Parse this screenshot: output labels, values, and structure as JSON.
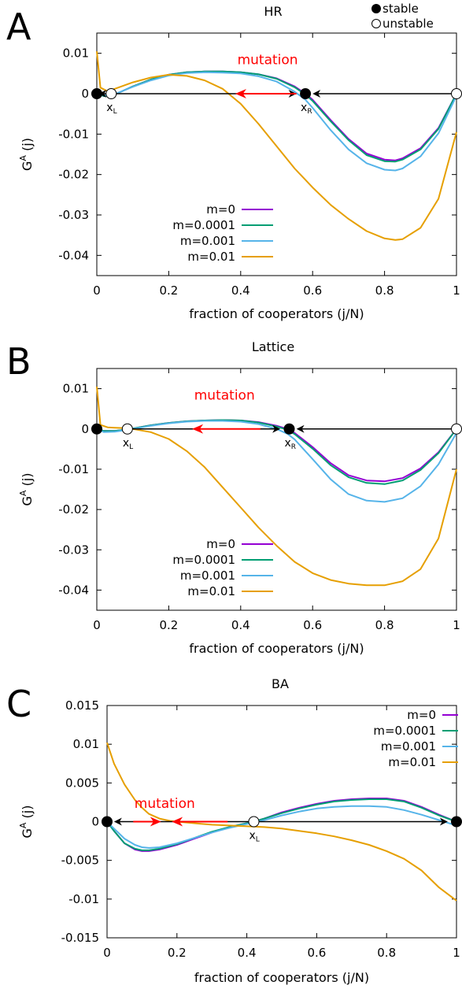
{
  "global_legend": {
    "stable_label": "stable",
    "unstable_label": "unstable"
  },
  "colors": {
    "m0": "#9400d3",
    "m1": "#009e73",
    "m2": "#56b4e9",
    "m3": "#e69f00",
    "mutation": "#ff0000"
  },
  "chart_data": [
    {
      "panel": "A",
      "title": "HR",
      "type": "line",
      "xlabel": "fraction of cooperators (j/N)",
      "ylabel": "GA (j)",
      "ylabel_main": "G",
      "ylabel_sup": "A",
      "ylabel_rest": "(j)",
      "xlim": [
        0,
        1
      ],
      "ylim": [
        -0.045,
        0.015
      ],
      "xticks": [
        0,
        0.2,
        0.4,
        0.6,
        0.8,
        1
      ],
      "xtick_labels": [
        "0",
        "0.2",
        "0.4",
        "0.6",
        "0.8",
        "1"
      ],
      "yticks": [
        0.01,
        0,
        -0.01,
        -0.02,
        -0.03,
        -0.04
      ],
      "ytick_labels": [
        "0.01",
        "0",
        "-0.01",
        "-0.02",
        "-0.03",
        "-0.04"
      ],
      "legend": {
        "position": "bottom-left",
        "entries": [
          "m=0",
          "m=0.0001",
          "m=0.001",
          "m=0.01"
        ]
      },
      "series": [
        {
          "name": "m=0",
          "color": "#9400d3",
          "x": [
            0,
            0.02,
            0.05,
            0.1,
            0.15,
            0.2,
            0.25,
            0.3,
            0.35,
            0.4,
            0.45,
            0.5,
            0.55,
            0.58,
            0.6,
            0.65,
            0.7,
            0.75,
            0.8,
            0.83,
            0.85,
            0.9,
            0.95,
            1
          ],
          "y": [
            0,
            -0.0006,
            -0.0002,
            0.0018,
            0.0035,
            0.0047,
            0.0053,
            0.0055,
            0.0055,
            0.0053,
            0.0048,
            0.0038,
            0.0018,
            0,
            -0.0015,
            -0.0065,
            -0.0112,
            -0.0148,
            -0.0163,
            -0.0165,
            -0.016,
            -0.0135,
            -0.0085,
            0
          ]
        },
        {
          "name": "m=0.0001",
          "color": "#009e73",
          "x": [
            0,
            0.02,
            0.05,
            0.1,
            0.15,
            0.2,
            0.25,
            0.3,
            0.35,
            0.4,
            0.45,
            0.5,
            0.55,
            0.58,
            0.6,
            0.65,
            0.7,
            0.75,
            0.8,
            0.83,
            0.85,
            0.9,
            0.95,
            1
          ],
          "y": [
            0,
            -0.0006,
            -0.0002,
            0.0018,
            0.0035,
            0.0047,
            0.0053,
            0.0055,
            0.0055,
            0.0053,
            0.0048,
            0.0037,
            0.0016,
            -0.0002,
            -0.0018,
            -0.0068,
            -0.0115,
            -0.0152,
            -0.0167,
            -0.0168,
            -0.0163,
            -0.0138,
            -0.0087,
            0
          ]
        },
        {
          "name": "m=0.001",
          "color": "#56b4e9",
          "x": [
            0,
            0.02,
            0.05,
            0.1,
            0.15,
            0.2,
            0.25,
            0.3,
            0.35,
            0.4,
            0.45,
            0.5,
            0.55,
            0.58,
            0.6,
            0.65,
            0.7,
            0.75,
            0.8,
            0.83,
            0.85,
            0.9,
            0.95,
            1
          ],
          "y": [
            0.0005,
            -0.0004,
            -0.0001,
            0.0017,
            0.0033,
            0.0045,
            0.0051,
            0.0053,
            0.0052,
            0.005,
            0.0043,
            0.003,
            0.0005,
            -0.0015,
            -0.0035,
            -0.009,
            -0.0138,
            -0.0172,
            -0.0188,
            -0.019,
            -0.0185,
            -0.0155,
            -0.0098,
            -0.0005
          ]
        },
        {
          "name": "m=0.01",
          "color": "#e69f00",
          "x": [
            0,
            0.01,
            0.03,
            0.05,
            0.1,
            0.15,
            0.2,
            0.25,
            0.3,
            0.35,
            0.4,
            0.45,
            0.5,
            0.55,
            0.6,
            0.65,
            0.7,
            0.75,
            0.8,
            0.83,
            0.85,
            0.9,
            0.95,
            1
          ],
          "y": [
            0.0105,
            0.0015,
            0.0006,
            0.0012,
            0.0028,
            0.004,
            0.0047,
            0.0044,
            0.0033,
            0.0012,
            -0.0025,
            -0.0075,
            -0.013,
            -0.0185,
            -0.0232,
            -0.0275,
            -0.031,
            -0.034,
            -0.0358,
            -0.0362,
            -0.036,
            -0.0332,
            -0.026,
            -0.0095
          ]
        }
      ],
      "fixed_points": [
        {
          "x": 0,
          "y": 0,
          "stable": true,
          "label": ""
        },
        {
          "x": 0.04,
          "y": 0,
          "stable": false,
          "label": "x",
          "sub": "L"
        },
        {
          "x": 0.58,
          "y": 0,
          "stable": true,
          "label": "x",
          "sub": "R"
        },
        {
          "x": 1,
          "y": 0,
          "stable": false,
          "label": ""
        }
      ],
      "arrows": [
        {
          "from": 0.04,
          "to": 0.005,
          "color": "#000000"
        },
        {
          "from": 0.04,
          "to": 0.555,
          "color": "#000000"
        },
        {
          "from": 1,
          "to": 0.6,
          "color": "#000000"
        },
        {
          "from": 0.555,
          "to": 0.385,
          "color": "#ff0000"
        }
      ],
      "mutation_label": "mutation",
      "mutation_at": [
        0.475,
        0.0073
      ]
    },
    {
      "panel": "B",
      "title": "Lattice",
      "type": "line",
      "xlabel": "fraction of cooperators (j/N)",
      "ylabel": "GA (j)",
      "ylabel_main": "G",
      "ylabel_sup": "A",
      "ylabel_rest": "(j)",
      "xlim": [
        0,
        1
      ],
      "ylim": [
        -0.045,
        0.015
      ],
      "xticks": [
        0,
        0.2,
        0.4,
        0.6,
        0.8,
        1
      ],
      "xtick_labels": [
        "0",
        "0.2",
        "0.4",
        "0.6",
        "0.8",
        "1"
      ],
      "yticks": [
        0.01,
        0,
        -0.01,
        -0.02,
        -0.03,
        -0.04
      ],
      "ytick_labels": [
        "0.01",
        "0",
        "-0.01",
        "-0.02",
        "-0.03",
        "-0.04"
      ],
      "legend": {
        "position": "bottom-left",
        "entries": [
          "m=0",
          "m=0.0001",
          "m=0.001",
          "m=0.01"
        ]
      },
      "series": [
        {
          "name": "m=0",
          "color": "#9400d3",
          "x": [
            0,
            0.02,
            0.05,
            0.08,
            0.1,
            0.15,
            0.2,
            0.25,
            0.3,
            0.35,
            0.4,
            0.45,
            0.5,
            0.53,
            0.55,
            0.6,
            0.65,
            0.7,
            0.75,
            0.8,
            0.85,
            0.9,
            0.95,
            1
          ],
          "y": [
            0,
            -0.0005,
            -0.0005,
            -0.0002,
            0.0001,
            0.0009,
            0.0015,
            0.0019,
            0.0021,
            0.0022,
            0.0021,
            0.0017,
            0.0008,
            0,
            -0.001,
            -0.0045,
            -0.0085,
            -0.0115,
            -0.0128,
            -0.013,
            -0.0122,
            -0.0098,
            -0.0058,
            0
          ]
        },
        {
          "name": "m=0.0001",
          "color": "#009e73",
          "x": [
            0,
            0.02,
            0.05,
            0.08,
            0.1,
            0.15,
            0.2,
            0.25,
            0.3,
            0.35,
            0.4,
            0.45,
            0.5,
            0.53,
            0.55,
            0.6,
            0.65,
            0.7,
            0.75,
            0.8,
            0.85,
            0.9,
            0.95,
            1
          ],
          "y": [
            0,
            -0.0005,
            -0.0005,
            -0.0002,
            0.0001,
            0.0009,
            0.0015,
            0.0019,
            0.0021,
            0.0022,
            0.0021,
            0.0016,
            0.0006,
            -0.0002,
            -0.0013,
            -0.0049,
            -0.009,
            -0.012,
            -0.0134,
            -0.0137,
            -0.0128,
            -0.0102,
            -0.006,
            0
          ]
        },
        {
          "name": "m=0.001",
          "color": "#56b4e9",
          "x": [
            0,
            0.02,
            0.05,
            0.08,
            0.1,
            0.15,
            0.2,
            0.25,
            0.3,
            0.35,
            0.4,
            0.45,
            0.5,
            0.53,
            0.55,
            0.6,
            0.65,
            0.7,
            0.75,
            0.8,
            0.85,
            0.9,
            0.95,
            1
          ],
          "y": [
            0,
            -0.0008,
            -0.0007,
            -0.0003,
            0,
            0.0008,
            0.0014,
            0.0018,
            0.002,
            0.002,
            0.0018,
            0.0012,
            0,
            -0.0012,
            -0.0026,
            -0.0075,
            -0.0125,
            -0.0162,
            -0.0178,
            -0.0181,
            -0.0172,
            -0.0142,
            -0.0088,
            -0.001
          ]
        },
        {
          "name": "m=0.01",
          "color": "#e69f00",
          "x": [
            0,
            0.01,
            0.03,
            0.05,
            0.08,
            0.1,
            0.15,
            0.2,
            0.25,
            0.3,
            0.35,
            0.4,
            0.45,
            0.5,
            0.55,
            0.6,
            0.65,
            0.7,
            0.75,
            0.8,
            0.85,
            0.9,
            0.95,
            1
          ],
          "y": [
            0.0105,
            0.001,
            0.0004,
            0.0003,
            0.0002,
            0,
            -0.0008,
            -0.0025,
            -0.0055,
            -0.0095,
            -0.0145,
            -0.0195,
            -0.0245,
            -0.029,
            -0.033,
            -0.0358,
            -0.0375,
            -0.0384,
            -0.0388,
            -0.0388,
            -0.0378,
            -0.0348,
            -0.0272,
            -0.01
          ]
        }
      ],
      "fixed_points": [
        {
          "x": 0,
          "y": 0,
          "stable": true,
          "label": ""
        },
        {
          "x": 0.085,
          "y": 0,
          "stable": false,
          "label": "x",
          "sub": "L"
        },
        {
          "x": 0.535,
          "y": 0,
          "stable": true,
          "label": "x",
          "sub": "R"
        },
        {
          "x": 1,
          "y": 0,
          "stable": false,
          "label": ""
        }
      ],
      "arrows": [
        {
          "from": 0.085,
          "to": 0.51,
          "color": "#000000"
        },
        {
          "from": 1,
          "to": 0.555,
          "color": "#000000"
        },
        {
          "from": 0.455,
          "to": 0.265,
          "color": "#ff0000"
        }
      ],
      "mutation_label": "mutation",
      "mutation_at": [
        0.355,
        0.0073
      ]
    },
    {
      "panel": "C",
      "title": "BA",
      "type": "line",
      "xlabel": "fraction of cooperators (j/N)",
      "ylabel": "GA (j)",
      "ylabel_main": "G",
      "ylabel_sup": "A",
      "ylabel_rest": "(j)",
      "xlim": [
        0,
        1
      ],
      "ylim": [
        -0.015,
        0.015
      ],
      "xticks": [
        0,
        0.2,
        0.4,
        0.6,
        0.8,
        1
      ],
      "xtick_labels": [
        "0",
        "0.2",
        "0.4",
        "0.6",
        "0.8",
        "1"
      ],
      "yticks": [
        0.015,
        0.01,
        0.005,
        0,
        -0.005,
        -0.01,
        -0.015
      ],
      "ytick_labels": [
        "0.015",
        "0.01",
        "0.005",
        "0",
        "-0.005",
        "-0.01",
        "-0.015"
      ],
      "legend": {
        "position": "top-right",
        "entries": [
          "m=0",
          "m=0.0001",
          "m=0.001",
          "m=0.01"
        ]
      },
      "series": [
        {
          "name": "m=0",
          "color": "#9400d3",
          "x": [
            0,
            0.02,
            0.05,
            0.08,
            0.1,
            0.12,
            0.15,
            0.2,
            0.25,
            0.3,
            0.35,
            0.4,
            0.42,
            0.45,
            0.5,
            0.55,
            0.6,
            0.65,
            0.7,
            0.75,
            0.8,
            0.85,
            0.9,
            0.95,
            1
          ],
          "y": [
            0,
            -0.0012,
            -0.0028,
            -0.0036,
            -0.0038,
            -0.0038,
            -0.0036,
            -0.003,
            -0.0022,
            -0.0014,
            -0.0007,
            -0.0002,
            0,
            0.0004,
            0.0012,
            0.0018,
            0.0023,
            0.0027,
            0.0029,
            0.003,
            0.003,
            0.0027,
            0.0019,
            0.0009,
            0
          ]
        },
        {
          "name": "m=0.0001",
          "color": "#009e73",
          "x": [
            0,
            0.02,
            0.05,
            0.08,
            0.1,
            0.12,
            0.15,
            0.2,
            0.25,
            0.3,
            0.35,
            0.4,
            0.42,
            0.45,
            0.5,
            0.55,
            0.6,
            0.65,
            0.7,
            0.75,
            0.8,
            0.85,
            0.9,
            0.95,
            1
          ],
          "y": [
            0,
            -0.0012,
            -0.0028,
            -0.0035,
            -0.0037,
            -0.0037,
            -0.0035,
            -0.0029,
            -0.0021,
            -0.0013,
            -0.0007,
            -0.0002,
            0,
            0.0004,
            0.0011,
            0.0017,
            0.0022,
            0.0026,
            0.0028,
            0.0029,
            0.0029,
            0.0026,
            0.0018,
            0.0008,
            0
          ]
        },
        {
          "name": "m=0.001",
          "color": "#56b4e9",
          "x": [
            0,
            0.02,
            0.05,
            0.08,
            0.1,
            0.12,
            0.15,
            0.2,
            0.25,
            0.3,
            0.35,
            0.4,
            0.42,
            0.45,
            0.5,
            0.55,
            0.6,
            0.65,
            0.7,
            0.75,
            0.8,
            0.85,
            0.9,
            0.95,
            1
          ],
          "y": [
            0,
            -0.0009,
            -0.0022,
            -0.003,
            -0.0033,
            -0.0034,
            -0.0033,
            -0.0028,
            -0.0021,
            -0.0014,
            -0.0008,
            -0.0003,
            -0.0001,
            0.0002,
            0.0008,
            0.0013,
            0.0017,
            0.0019,
            0.002,
            0.002,
            0.0019,
            0.0015,
            0.0009,
            0.0002,
            -0.0005
          ]
        },
        {
          "name": "m=0.01",
          "color": "#e69f00",
          "x": [
            0,
            0.02,
            0.05,
            0.08,
            0.1,
            0.12,
            0.15,
            0.18,
            0.2,
            0.25,
            0.3,
            0.35,
            0.4,
            0.45,
            0.5,
            0.55,
            0.6,
            0.65,
            0.7,
            0.75,
            0.8,
            0.85,
            0.9,
            0.95,
            1
          ],
          "y": [
            0.0102,
            0.0075,
            0.0048,
            0.0028,
            0.0018,
            0.001,
            0.0004,
            0.0001,
            0,
            -0.0002,
            -0.0004,
            -0.0005,
            -0.0006,
            -0.0007,
            -0.0009,
            -0.0012,
            -0.0015,
            -0.0019,
            -0.0024,
            -0.003,
            -0.0038,
            -0.0048,
            -0.0063,
            -0.0085,
            -0.0102
          ]
        }
      ],
      "fixed_points": [
        {
          "x": 0,
          "y": 0,
          "stable": true,
          "label": ""
        },
        {
          "x": 0.42,
          "y": 0,
          "stable": false,
          "label": "x",
          "sub": "L"
        },
        {
          "x": 1,
          "y": 0,
          "stable": true,
          "label": ""
        }
      ],
      "arrows": [
        {
          "from": 0.42,
          "to": 0.02,
          "color": "#000000"
        },
        {
          "from": 0.42,
          "to": 0.975,
          "color": "#000000"
        },
        {
          "from": 0.075,
          "to": 0.155,
          "color": "#ff0000"
        },
        {
          "from": 0.345,
          "to": 0.185,
          "color": "#ff0000"
        }
      ],
      "mutation_label": "mutation",
      "mutation_at": [
        0.165,
        0.0018
      ]
    }
  ]
}
